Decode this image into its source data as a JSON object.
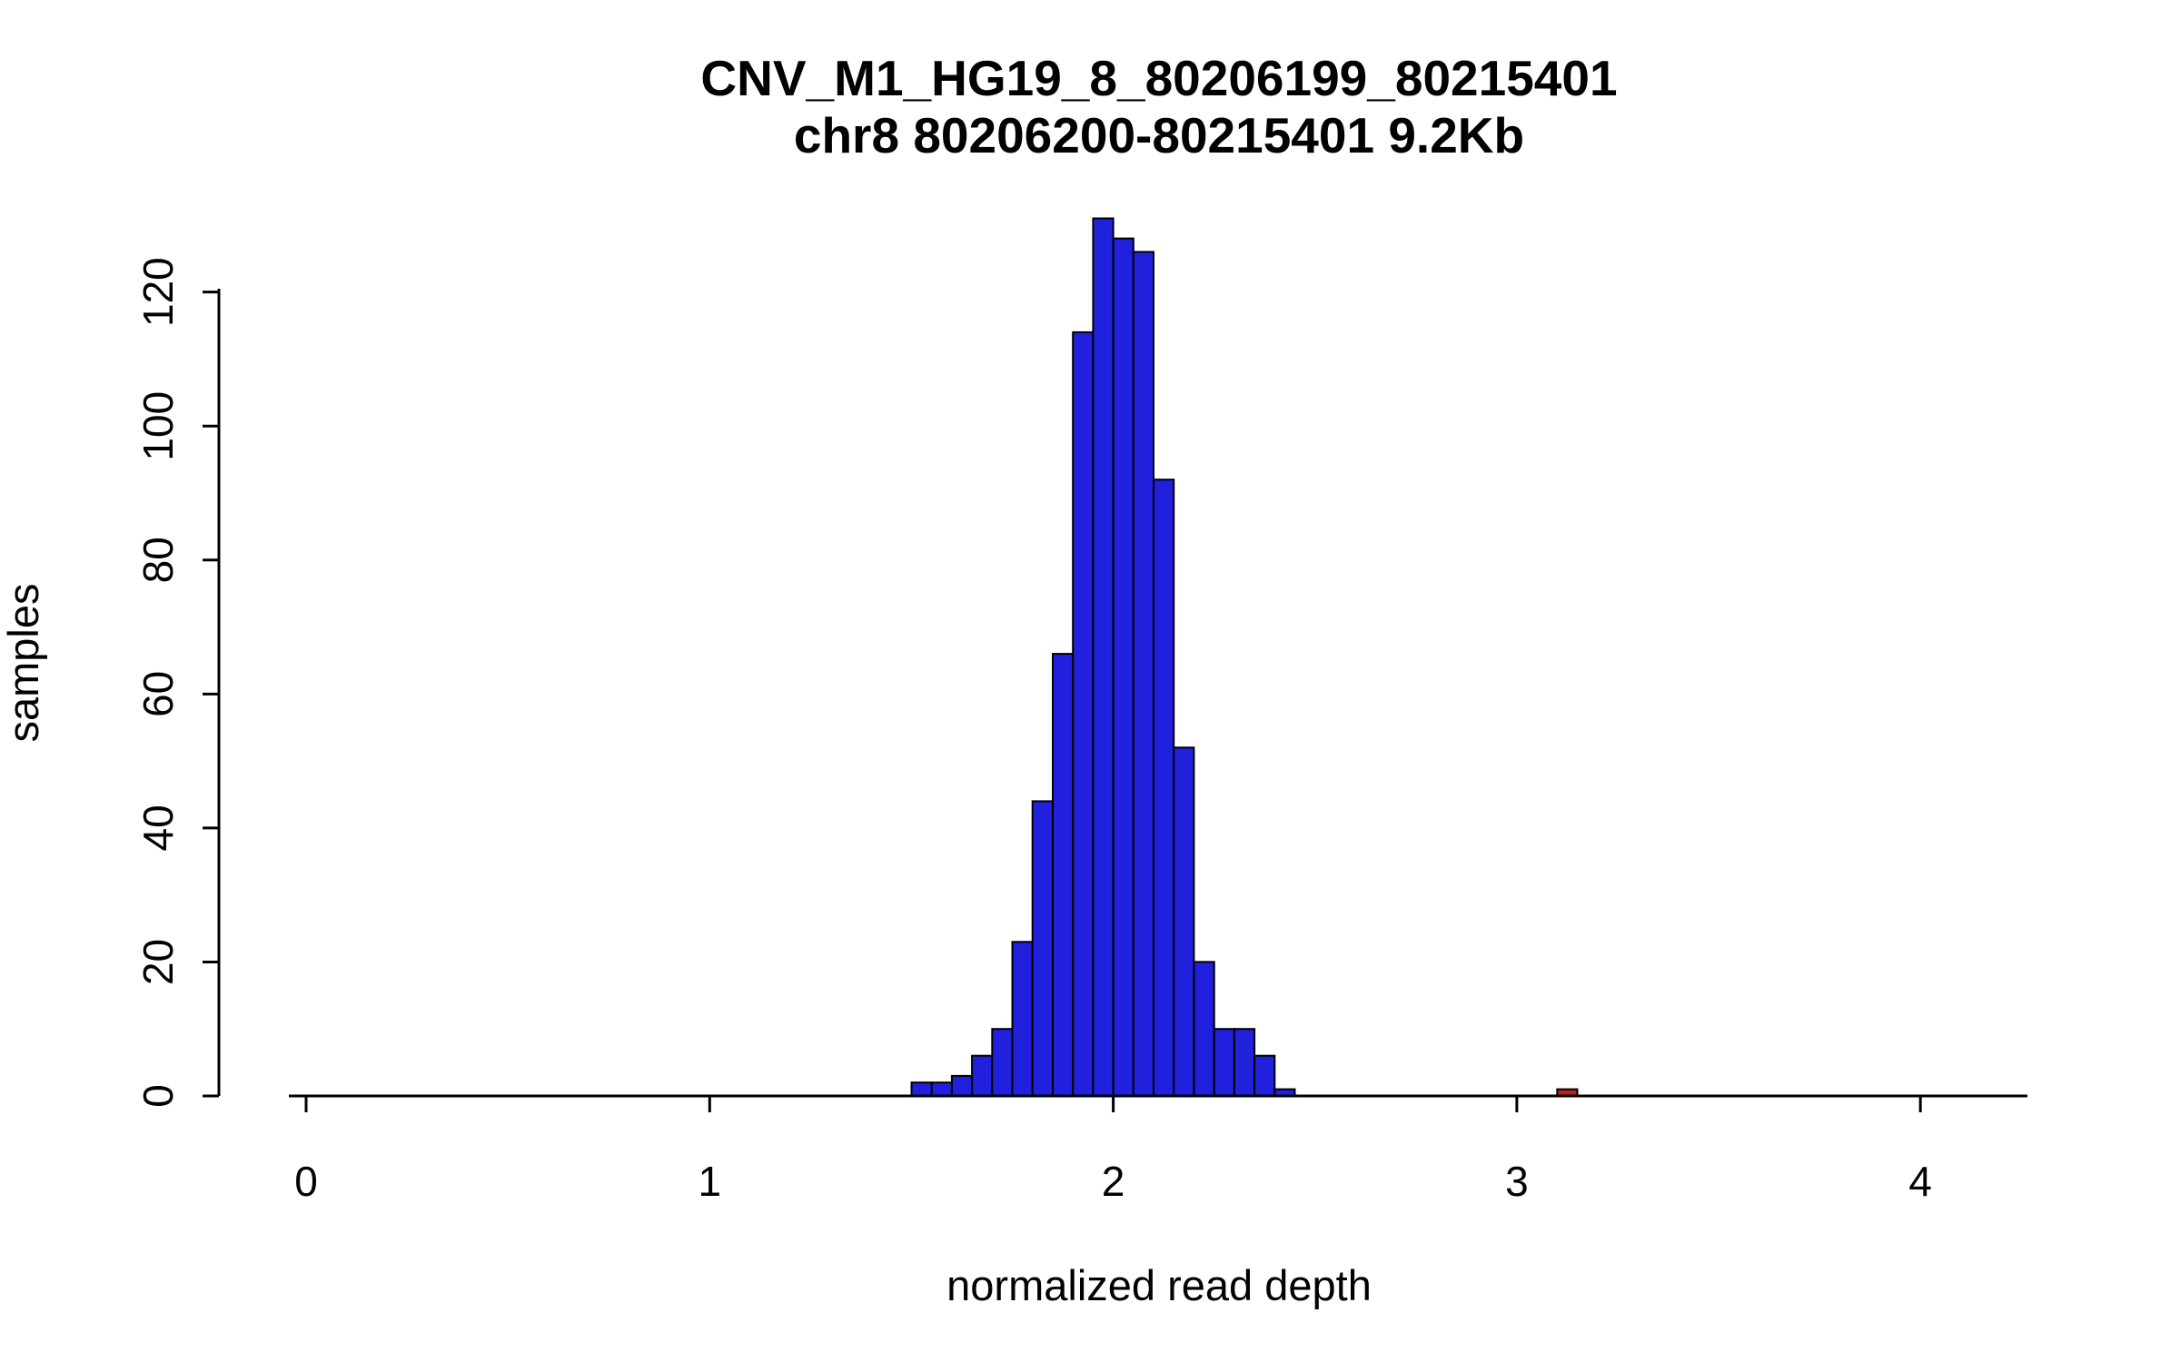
{
  "chart_data": {
    "type": "bar",
    "title": "CNV_M1_HG19_8_80206199_80215401",
    "subtitle": "chr8 80206200-80215401 9.2Kb",
    "xlabel": "normalized read depth",
    "ylabel": "samples",
    "x_ticks": [
      0,
      1,
      2,
      3,
      4
    ],
    "y_ticks": [
      0,
      20,
      40,
      60,
      80,
      100,
      120
    ],
    "xlim": [
      -0.05,
      4.3
    ],
    "ylim": [
      0,
      133
    ],
    "bin_width": 0.05,
    "grid": false,
    "legend": "none",
    "colors": {
      "bar_fill": "#2121dd",
      "bar_stroke": "#000000",
      "outlier_fill": "#b22222",
      "axis": "#000000"
    },
    "bars": [
      {
        "x": 1.5,
        "count": 2
      },
      {
        "x": 1.55,
        "count": 2
      },
      {
        "x": 1.6,
        "count": 3
      },
      {
        "x": 1.65,
        "count": 6
      },
      {
        "x": 1.7,
        "count": 10
      },
      {
        "x": 1.75,
        "count": 23
      },
      {
        "x": 1.8,
        "count": 44
      },
      {
        "x": 1.85,
        "count": 66
      },
      {
        "x": 1.9,
        "count": 114
      },
      {
        "x": 1.95,
        "count": 131
      },
      {
        "x": 2.0,
        "count": 128
      },
      {
        "x": 2.05,
        "count": 126
      },
      {
        "x": 2.1,
        "count": 92
      },
      {
        "x": 2.15,
        "count": 52
      },
      {
        "x": 2.2,
        "count": 20
      },
      {
        "x": 2.25,
        "count": 10
      },
      {
        "x": 2.3,
        "count": 10
      },
      {
        "x": 2.35,
        "count": 6
      },
      {
        "x": 2.4,
        "count": 1
      },
      {
        "x": 3.1,
        "count": 1,
        "outlier": true
      }
    ]
  }
}
